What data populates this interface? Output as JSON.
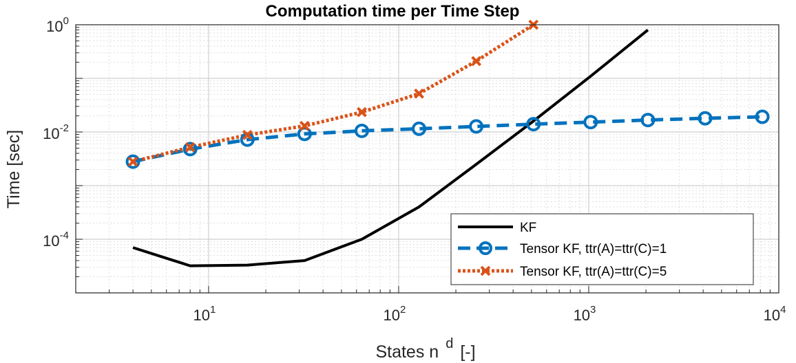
{
  "chart_data": {
    "type": "line",
    "title": "Computation time per Time Step",
    "xlabel": {
      "base": "States n",
      "sup": "d",
      "unit": "[-]"
    },
    "ylabel": "Time [sec]",
    "xscale": "log",
    "yscale": "log",
    "xlim": [
      2,
      10000
    ],
    "ylim": [
      1e-05,
      1
    ],
    "grid": true,
    "minor_grid": true,
    "legend_position": "bottom-right",
    "x_ticks": [
      {
        "base": "10",
        "exp": "1",
        "value": 10
      },
      {
        "base": "10",
        "exp": "2",
        "value": 100
      },
      {
        "base": "10",
        "exp": "3",
        "value": 1000
      },
      {
        "base": "10",
        "exp": "4",
        "value": 10000
      }
    ],
    "y_ticks": [
      {
        "base": "10",
        "exp": "0",
        "value": 1
      },
      {
        "base": "10",
        "exp": "-2",
        "value": 0.01
      },
      {
        "base": "10",
        "exp": "-4",
        "value": 0.0001
      }
    ],
    "series": [
      {
        "name": "KF",
        "color": "#000000",
        "style": "solid",
        "marker": "none",
        "x": [
          4,
          8,
          16,
          32,
          64,
          128,
          256,
          512,
          1024,
          2048
        ],
        "y": [
          7e-05,
          3.2e-05,
          3.3e-05,
          4e-05,
          0.0001,
          0.0004,
          0.0025,
          0.016,
          0.11,
          0.8
        ]
      },
      {
        "name": "Tensor KF, ttr(A)=ttr(C)=1",
        "color": "#0072bd",
        "style": "dashed",
        "marker": "circle",
        "x": [
          4,
          8,
          16,
          32,
          64,
          128,
          256,
          512,
          1024,
          2048,
          4096,
          8192
        ],
        "y": [
          0.0028,
          0.0048,
          0.0072,
          0.0092,
          0.0105,
          0.0115,
          0.0127,
          0.014,
          0.0153,
          0.0167,
          0.018,
          0.0192
        ]
      },
      {
        "name": "Tensor KF, ttr(A)=ttr(C)=5",
        "color": "#d95319",
        "style": "dotted",
        "marker": "x",
        "x": [
          4,
          8,
          16,
          32,
          64,
          128,
          256,
          512
        ],
        "y": [
          0.0028,
          0.0052,
          0.0088,
          0.013,
          0.0235,
          0.052,
          0.21,
          1.0
        ]
      }
    ]
  }
}
